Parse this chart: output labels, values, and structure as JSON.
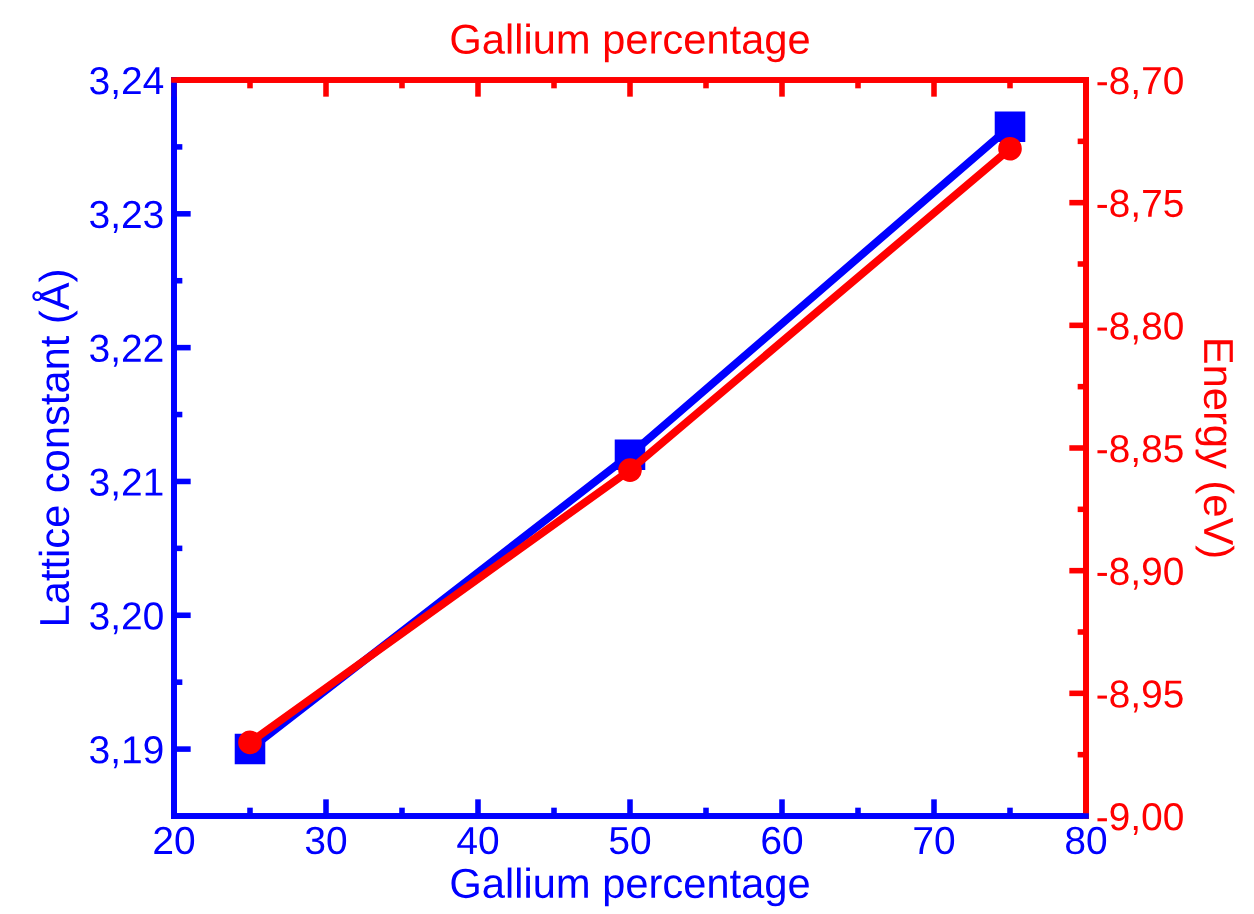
{
  "chart_data": {
    "type": "line",
    "x": [
      25,
      50,
      75
    ],
    "xlabel": "Gallium percentage",
    "ylabel": "Lattice constant (Å)",
    "y2label": "Energy (eV)",
    "x2label": "Gallium percentage",
    "series": [
      {
        "color": "#0000ff",
        "values": [
          3.19,
          3.212,
          3.2365
        ],
        "marker": "square"
      },
      {
        "color": "#ff0000",
        "values": [
          -8.97,
          -8.859,
          -8.728
        ],
        "marker": "circle",
        "axis": "y2"
      }
    ],
    "xlim": [
      20,
      80
    ],
    "xticks": [
      20,
      30,
      40,
      50,
      60,
      70,
      80
    ],
    "ylim": [
      3.185,
      3.24
    ],
    "yticks": [
      {
        "value": 3.19,
        "label": "3,19"
      },
      {
        "value": 3.2,
        "label": "3,20"
      },
      {
        "value": 3.21,
        "label": "3,21"
      },
      {
        "value": 3.22,
        "label": "3,22"
      },
      {
        "value": 3.23,
        "label": "3,23"
      },
      {
        "value": 3.24,
        "label": "3,24"
      }
    ],
    "y2lim": [
      -9.0,
      -8.7
    ],
    "y2ticks": [
      {
        "value": -9.0,
        "label": "-9,00"
      },
      {
        "value": -8.95,
        "label": "-8,95"
      },
      {
        "value": -8.9,
        "label": "-8,90"
      },
      {
        "value": -8.85,
        "label": "-8,85"
      },
      {
        "value": -8.8,
        "label": "-8,80"
      },
      {
        "value": -8.75,
        "label": "-8,75"
      },
      {
        "value": -8.7,
        "label": "-8,70"
      }
    ],
    "grid": false,
    "legend": false,
    "line_style": "solid"
  }
}
